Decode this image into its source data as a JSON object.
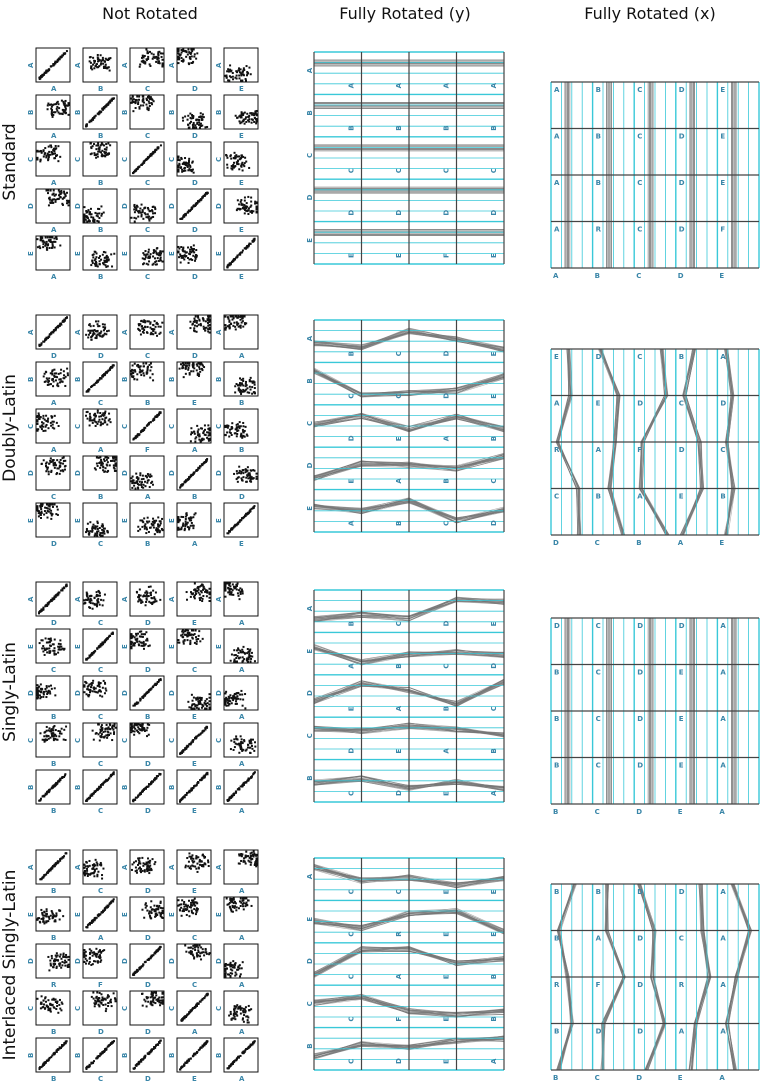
{
  "column_titles": [
    "Not Rotated",
    "Fully Rotated (y)",
    "Fully Rotated (x)"
  ],
  "row_titles": [
    "Standard",
    "Doubly-Latin",
    "Singly-Latin",
    "Interlaced Singly-Latin"
  ],
  "rows": [
    {
      "grid": {
        "x": [
          [
            "A",
            "B",
            "C",
            "D",
            "E"
          ],
          [
            "A",
            "B",
            "C",
            "D",
            "E"
          ],
          [
            "A",
            "B",
            "C",
            "D",
            "E"
          ],
          [
            "A",
            "B",
            "C",
            "D",
            "E"
          ],
          [
            "A",
            "B",
            "C",
            "D",
            "E"
          ]
        ],
        "y": [
          "A",
          "B",
          "C",
          "D",
          "E"
        ]
      },
      "py": {
        "left": [
          "A",
          "B",
          "C",
          "D",
          "E"
        ],
        "inner": [
          [
            "A",
            "A",
            "A",
            "A"
          ],
          [
            "B",
            "B",
            "B",
            "B"
          ],
          [
            "C",
            "C",
            "C",
            "C"
          ],
          [
            "D",
            "D",
            "D",
            "D"
          ],
          [
            "E",
            "E",
            "F",
            "E"
          ]
        ]
      },
      "px": {
        "bottom": [
          "A",
          "B",
          "C",
          "D",
          "E"
        ],
        "inner": [
          [
            "A",
            "B",
            "C",
            "D",
            "E"
          ],
          [
            "A",
            "B",
            "C",
            "D",
            "E"
          ],
          [
            "A",
            "B",
            "C",
            "D",
            "E"
          ],
          [
            "A",
            "R",
            "C",
            "D",
            "F"
          ]
        ]
      }
    },
    {
      "grid": {
        "x": [
          [
            "D",
            "D",
            "C",
            "D",
            "A"
          ],
          [
            "A",
            "C",
            "B",
            "E",
            "B"
          ],
          [
            "A",
            "A",
            "F",
            "A",
            "B"
          ],
          [
            "C",
            "B",
            "A",
            "B",
            "D"
          ],
          [
            "D",
            "C",
            "B",
            "A",
            "E"
          ]
        ],
        "y": [
          "A",
          "B",
          "C",
          "D",
          "E"
        ]
      },
      "py": {
        "left": [
          "A",
          "B",
          "C",
          "D",
          "E"
        ],
        "inner": [
          [
            "B",
            "C",
            "D",
            "E"
          ],
          [
            "C",
            "C",
            "D",
            "E"
          ],
          [
            "D",
            "E",
            "A",
            "B"
          ],
          [
            "E",
            "A",
            "B",
            "C"
          ],
          [
            "A",
            "B",
            "C",
            "D"
          ]
        ]
      },
      "px": {
        "bottom": [
          "D",
          "C",
          "B",
          "A",
          "E"
        ],
        "inner": [
          [
            "E",
            "D",
            "C",
            "B",
            "A"
          ],
          [
            "A",
            "E",
            "D",
            "C",
            "D"
          ],
          [
            "R",
            "A",
            "F",
            "D",
            "C"
          ],
          [
            "C",
            "B",
            "A",
            "E",
            "B"
          ]
        ]
      }
    },
    {
      "grid": {
        "x": [
          [
            "D",
            "C",
            "D",
            "E",
            "A"
          ],
          [
            "C",
            "C",
            "D",
            "C",
            "A"
          ],
          [
            "B",
            "C",
            "B",
            "E",
            "A"
          ],
          [
            "B",
            "C",
            "D",
            "E",
            "A"
          ],
          [
            "B",
            "C",
            "D",
            "E",
            "A"
          ]
        ],
        "y": [
          "A",
          "E",
          "D",
          "C",
          "B"
        ]
      },
      "py": {
        "left": [
          "A",
          "E",
          "D",
          "C",
          "B"
        ],
        "inner": [
          [
            "B",
            "C",
            "D",
            "E"
          ],
          [
            "A",
            "B",
            "C",
            "D"
          ],
          [
            "E",
            "A",
            "B",
            "C"
          ],
          [
            "D",
            "E",
            "A",
            "B"
          ],
          [
            "C",
            "D",
            "E",
            "A"
          ]
        ]
      },
      "px": {
        "bottom": [
          "B",
          "C",
          "D",
          "E",
          "A"
        ],
        "inner": [
          [
            "D",
            "C",
            "D",
            "D",
            "A"
          ],
          [
            "B",
            "C",
            "D",
            "E",
            "A"
          ],
          [
            "B",
            "C",
            "D",
            "E",
            "A"
          ],
          [
            "B",
            "C",
            "D",
            "E",
            "A"
          ]
        ]
      }
    },
    {
      "grid": {
        "x": [
          [
            "B",
            "C",
            "D",
            "E",
            "A"
          ],
          [
            "B",
            "A",
            "D",
            "C",
            "A"
          ],
          [
            "R",
            "F",
            "D",
            "C",
            "A"
          ],
          [
            "B",
            "D",
            "D",
            "A",
            "A"
          ],
          [
            "B",
            "C",
            "D",
            "E",
            "A"
          ]
        ],
        "y": [
          "A",
          "E",
          "D",
          "C",
          "B"
        ]
      },
      "py": {
        "left": [
          "A",
          "E",
          "D",
          "C",
          "B"
        ],
        "inner": [
          [
            "C",
            "C",
            "E",
            "E"
          ],
          [
            "C",
            "R",
            "E",
            "E"
          ],
          [
            "C",
            "A",
            "E",
            "B"
          ],
          [
            "C",
            "F",
            "E",
            "B"
          ],
          [
            "C",
            "D",
            "E",
            "A"
          ]
        ]
      },
      "px": {
        "bottom": [
          "B",
          "C",
          "D",
          "E",
          "A"
        ],
        "inner": [
          [
            "B",
            "B",
            "D",
            "D",
            "A"
          ],
          [
            "B",
            "A",
            "D",
            "C",
            "A"
          ],
          [
            "R",
            "F",
            "D",
            "R",
            "A"
          ],
          [
            "B",
            "D",
            "D",
            "A",
            "A"
          ]
        ]
      }
    }
  ]
}
